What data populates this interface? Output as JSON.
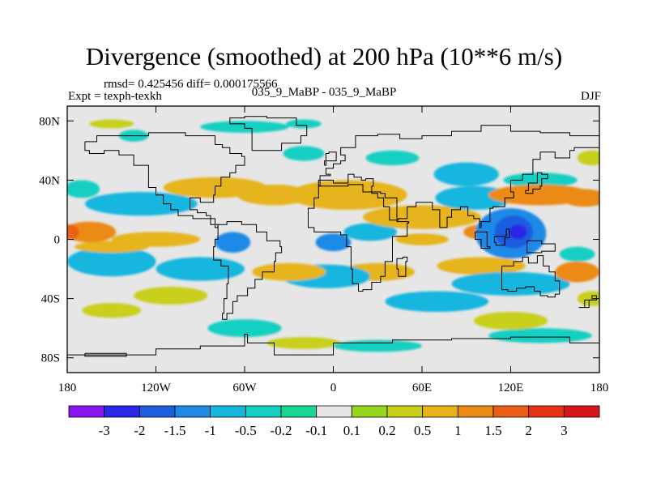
{
  "chart_data": {
    "type": "heatmap",
    "title": "Divergence (smoothed) at 200 hPa (10**6 m/s)",
    "stats_label": "rmsd= 0.425456 diff= 0.000175566",
    "experiment_label": "Expt = texph-texkh",
    "comparison_label": "035_9_MaBP - 035_9_MaBP",
    "season": "DJF",
    "projection": "cylindrical-equidistant",
    "x_range": [
      -180,
      180
    ],
    "y_range": [
      -90,
      90
    ],
    "x_ticks": [
      {
        "value": -180,
        "label": "180"
      },
      {
        "value": -120,
        "label": "120W"
      },
      {
        "value": -60,
        "label": "60W"
      },
      {
        "value": 0,
        "label": "0"
      },
      {
        "value": 60,
        "label": "60E"
      },
      {
        "value": 120,
        "label": "120E"
      },
      {
        "value": 180,
        "label": "180"
      }
    ],
    "y_ticks": [
      {
        "value": 80,
        "label": "80N"
      },
      {
        "value": 40,
        "label": "40N"
      },
      {
        "value": 0,
        "label": "0"
      },
      {
        "value": -40,
        "label": "40S"
      },
      {
        "value": -80,
        "label": "80S"
      }
    ],
    "colorbar": {
      "levels": [
        "-3",
        "-2",
        "-1.5",
        "-1",
        "-0.5",
        "-0.2",
        "-0.1",
        "0.1",
        "0.2",
        "0.5",
        "1",
        "1.5",
        "2",
        "3"
      ],
      "colors": [
        "#8a14f0",
        "#2a28e6",
        "#1e5ce0",
        "#1e8ae6",
        "#17b6df",
        "#16cfc3",
        "#1ad690",
        "#e6e6e6",
        "#96d61c",
        "#c8cf1a",
        "#e6b41a",
        "#ec8a18",
        "#ec5e16",
        "#e83216",
        "#d8141a"
      ]
    },
    "features": [
      {
        "lon": 125,
        "lat": 5,
        "rx": 6,
        "ry": 5,
        "value": -2.5
      },
      {
        "lon": 122,
        "lat": 5,
        "rx": 13,
        "ry": 11,
        "value": -1.7
      },
      {
        "lon": 120,
        "lat": 4,
        "rx": 24,
        "ry": 17,
        "value": -1.2
      },
      {
        "lon": -68,
        "lat": -2,
        "rx": 12,
        "ry": 7,
        "value": -1.1
      },
      {
        "lon": 0,
        "lat": -2,
        "rx": 12,
        "ry": 6,
        "value": -1.1
      },
      {
        "lon": -130,
        "lat": 24,
        "rx": 38,
        "ry": 8,
        "value": -1.0
      },
      {
        "lon": 95,
        "lat": 28,
        "rx": 26,
        "ry": 8,
        "value": -1.0
      },
      {
        "lon": 90,
        "lat": 44,
        "rx": 22,
        "ry": 8,
        "value": -0.6
      },
      {
        "lon": -150,
        "lat": -15,
        "rx": 30,
        "ry": 10,
        "value": -0.6
      },
      {
        "lon": -90,
        "lat": -20,
        "rx": 30,
        "ry": 8,
        "value": -0.6
      },
      {
        "lon": -5,
        "lat": -25,
        "rx": 30,
        "ry": 8,
        "value": -0.6
      },
      {
        "lon": 25,
        "lat": 5,
        "rx": 18,
        "ry": 6,
        "value": -0.6
      },
      {
        "lon": 120,
        "lat": -30,
        "rx": 40,
        "ry": 8,
        "value": -0.6
      },
      {
        "lon": 70,
        "lat": -42,
        "rx": 35,
        "ry": 7,
        "value": -0.6
      },
      {
        "lon": -60,
        "lat": -60,
        "rx": 25,
        "ry": 6,
        "value": -0.4
      },
      {
        "lon": 30,
        "lat": -72,
        "rx": 30,
        "ry": 4,
        "value": -0.4
      },
      {
        "lon": 140,
        "lat": -65,
        "rx": 35,
        "ry": 5,
        "value": -0.4
      },
      {
        "lon": -60,
        "lat": 76,
        "rx": 30,
        "ry": 4,
        "value": -0.3
      },
      {
        "lon": -20,
        "lat": 78,
        "rx": 12,
        "ry": 3,
        "value": -0.3
      },
      {
        "lon": -135,
        "lat": 70,
        "rx": 10,
        "ry": 4,
        "value": -0.3
      },
      {
        "lon": -20,
        "lat": 58,
        "rx": 14,
        "ry": 5,
        "value": -0.3
      },
      {
        "lon": 40,
        "lat": 55,
        "rx": 18,
        "ry": 5,
        "value": -0.3
      },
      {
        "lon": 140,
        "lat": 40,
        "rx": 25,
        "ry": 5,
        "value": -0.5
      },
      {
        "lon": -170,
        "lat": 34,
        "rx": 12,
        "ry": 6,
        "value": -0.3
      },
      {
        "lon": 165,
        "lat": -10,
        "rx": 12,
        "ry": 5,
        "value": -0.5
      },
      {
        "lon": -80,
        "lat": 35,
        "rx": 35,
        "ry": 7,
        "value": 0.8
      },
      {
        "lon": -40,
        "lat": 30,
        "rx": 25,
        "ry": 7,
        "value": 0.6
      },
      {
        "lon": 10,
        "lat": 30,
        "rx": 40,
        "ry": 10,
        "value": 0.8
      },
      {
        "lon": 140,
        "lat": 30,
        "rx": 35,
        "ry": 7,
        "value": 1.3
      },
      {
        "lon": 170,
        "lat": 28,
        "rx": 15,
        "ry": 6,
        "value": 1.0
      },
      {
        "lon": 60,
        "lat": 15,
        "rx": 40,
        "ry": 8,
        "value": 0.6
      },
      {
        "lon": -165,
        "lat": 5,
        "rx": 18,
        "ry": 7,
        "value": 1.4
      },
      {
        "lon": -178,
        "lat": 5,
        "rx": 6,
        "ry": 5,
        "value": 1.8
      },
      {
        "lon": 100,
        "lat": 5,
        "rx": 12,
        "ry": 5,
        "value": 1.0
      },
      {
        "lon": 60,
        "lat": 0,
        "rx": 18,
        "ry": 4,
        "value": 0.6
      },
      {
        "lon": -120,
        "lat": 0,
        "rx": 30,
        "ry": 5,
        "value": 0.5
      },
      {
        "lon": -150,
        "lat": -5,
        "rx": 25,
        "ry": 4,
        "value": 0.6
      },
      {
        "lon": -30,
        "lat": -22,
        "rx": 25,
        "ry": 6,
        "value": 0.6
      },
      {
        "lon": 30,
        "lat": -22,
        "rx": 25,
        "ry": 6,
        "value": 0.5
      },
      {
        "lon": 100,
        "lat": -18,
        "rx": 30,
        "ry": 6,
        "value": 0.5
      },
      {
        "lon": 165,
        "lat": -22,
        "rx": 15,
        "ry": 7,
        "value": 1.1
      },
      {
        "lon": -110,
        "lat": -38,
        "rx": 25,
        "ry": 6,
        "value": 0.4
      },
      {
        "lon": -150,
        "lat": -48,
        "rx": 20,
        "ry": 5,
        "value": 0.4
      },
      {
        "lon": 120,
        "lat": -55,
        "rx": 25,
        "ry": 6,
        "value": 0.4
      },
      {
        "lon": 175,
        "lat": -40,
        "rx": 10,
        "ry": 5,
        "value": 0.3
      },
      {
        "lon": -20,
        "lat": -70,
        "rx": 25,
        "ry": 4,
        "value": 0.3
      },
      {
        "lon": 175,
        "lat": 55,
        "rx": 10,
        "ry": 5,
        "value": 0.3
      },
      {
        "lon": -150,
        "lat": 78,
        "rx": 15,
        "ry": 3,
        "value": 0.3
      }
    ]
  }
}
